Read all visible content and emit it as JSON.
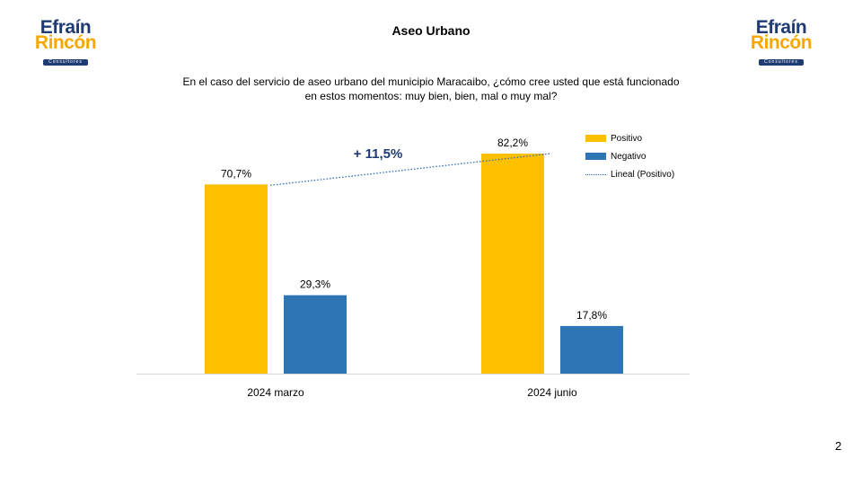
{
  "logo": {
    "line1": "Efraín",
    "line2": "Rincón",
    "tagline": "Consultores"
  },
  "title": "Aseo Urbano",
  "question": "En el caso del servicio de aseo urbano del municipio Maracaibo, ¿cómo cree usted que está funcionado en estos momentos: muy bien, bien, mal o muy mal?",
  "page_number": "2",
  "chart_data": {
    "type": "bar",
    "categories": [
      "2024 marzo",
      "2024 junio"
    ],
    "series": [
      {
        "name": "Positivo",
        "values": [
          70.7,
          82.2
        ],
        "labels": [
          "70,7%",
          "82,2%"
        ],
        "color": "#ffc000"
      },
      {
        "name": "Negativo",
        "values": [
          29.3,
          17.8
        ],
        "labels": [
          "29,3%",
          "17,8%"
        ],
        "color": "#2e75b6"
      }
    ],
    "trendline": {
      "name": "Lineal (Positivo)",
      "series": "Positivo",
      "color": "#2f6db5",
      "style": "dotted"
    },
    "annotation": "+ 11,5%",
    "ylim": [
      0,
      100
    ],
    "legend_position": "top-right",
    "grid": false
  }
}
